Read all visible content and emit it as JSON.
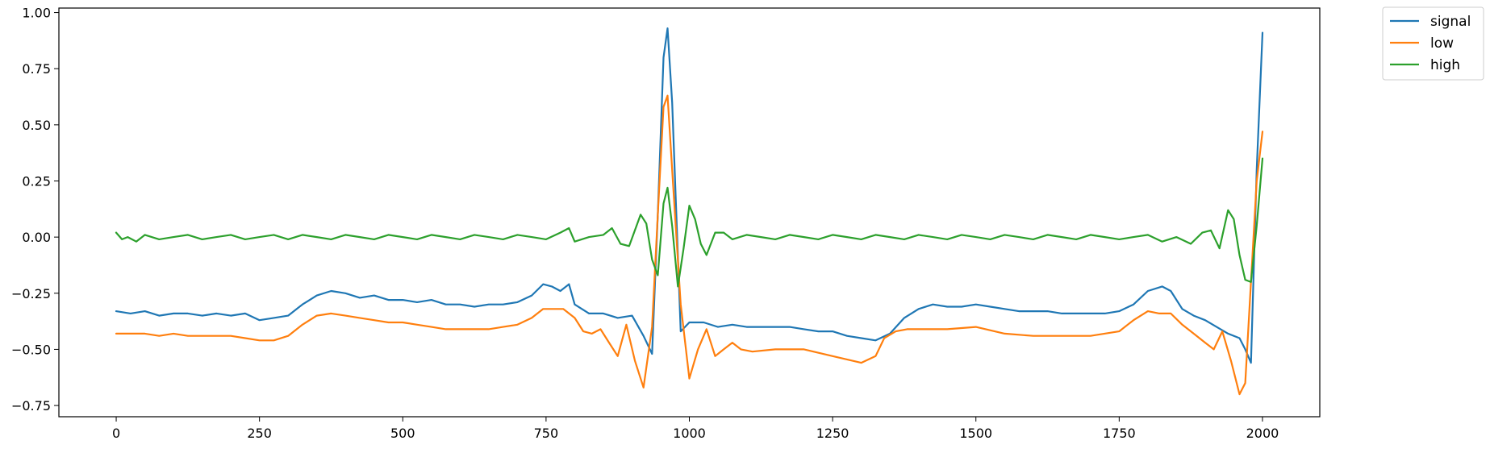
{
  "chart_data": {
    "type": "line",
    "title": "",
    "xlabel": "",
    "ylabel": "",
    "xlim": [
      -100,
      2100
    ],
    "ylim": [
      -0.8,
      1.02
    ],
    "xticks": [
      0,
      250,
      500,
      750,
      1000,
      1250,
      1500,
      1750,
      2000
    ],
    "xtick_labels": [
      "0",
      "250",
      "500",
      "750",
      "1000",
      "1250",
      "1500",
      "1750",
      "2000"
    ],
    "yticks": [
      -0.75,
      -0.5,
      -0.25,
      0.0,
      0.25,
      0.5,
      0.75,
      1.0
    ],
    "ytick_labels": [
      "−0.75",
      "−0.50",
      "−0.25",
      "0.00",
      "0.25",
      "0.50",
      "0.75",
      "1.00"
    ],
    "grid": false,
    "legend_position": "outside-top-right",
    "series": [
      {
        "name": "signal",
        "color": "#1f77b4",
        "x": [
          0,
          25,
          50,
          75,
          100,
          125,
          150,
          175,
          200,
          225,
          250,
          275,
          300,
          325,
          350,
          375,
          400,
          425,
          450,
          475,
          500,
          525,
          550,
          575,
          600,
          625,
          650,
          675,
          700,
          725,
          745,
          760,
          775,
          790,
          800,
          825,
          850,
          875,
          900,
          920,
          935,
          945,
          955,
          962,
          970,
          985,
          1000,
          1025,
          1050,
          1075,
          1100,
          1125,
          1150,
          1175,
          1200,
          1225,
          1250,
          1275,
          1300,
          1325,
          1350,
          1375,
          1400,
          1425,
          1450,
          1475,
          1500,
          1525,
          1550,
          1575,
          1600,
          1625,
          1650,
          1675,
          1700,
          1725,
          1750,
          1775,
          1800,
          1825,
          1840,
          1860,
          1880,
          1900,
          1920,
          1940,
          1960,
          1970,
          1980,
          1990,
          2000
        ],
        "y": [
          -0.33,
          -0.34,
          -0.33,
          -0.35,
          -0.34,
          -0.34,
          -0.35,
          -0.34,
          -0.35,
          -0.34,
          -0.37,
          -0.36,
          -0.35,
          -0.3,
          -0.26,
          -0.24,
          -0.25,
          -0.27,
          -0.26,
          -0.28,
          -0.28,
          -0.29,
          -0.28,
          -0.3,
          -0.3,
          -0.31,
          -0.3,
          -0.3,
          -0.29,
          -0.26,
          -0.21,
          -0.22,
          -0.24,
          -0.21,
          -0.3,
          -0.34,
          -0.34,
          -0.36,
          -0.35,
          -0.44,
          -0.52,
          0.1,
          0.8,
          0.93,
          0.6,
          -0.42,
          -0.38,
          -0.38,
          -0.4,
          -0.39,
          -0.4,
          -0.4,
          -0.4,
          -0.4,
          -0.41,
          -0.42,
          -0.42,
          -0.44,
          -0.45,
          -0.46,
          -0.43,
          -0.36,
          -0.32,
          -0.3,
          -0.31,
          -0.31,
          -0.3,
          -0.31,
          -0.32,
          -0.33,
          -0.33,
          -0.33,
          -0.34,
          -0.34,
          -0.34,
          -0.34,
          -0.33,
          -0.3,
          -0.24,
          -0.22,
          -0.24,
          -0.32,
          -0.35,
          -0.37,
          -0.4,
          -0.43,
          -0.45,
          -0.5,
          -0.56,
          0.3,
          0.91
        ]
      },
      {
        "name": "low",
        "color": "#ff7f0e",
        "x": [
          0,
          25,
          50,
          75,
          100,
          125,
          150,
          175,
          200,
          225,
          250,
          275,
          300,
          325,
          350,
          375,
          400,
          425,
          450,
          475,
          500,
          525,
          550,
          575,
          600,
          625,
          650,
          675,
          700,
          725,
          745,
          760,
          780,
          800,
          815,
          830,
          845,
          860,
          875,
          890,
          905,
          920,
          935,
          945,
          955,
          962,
          970,
          985,
          1000,
          1015,
          1030,
          1045,
          1060,
          1075,
          1090,
          1110,
          1150,
          1200,
          1250,
          1300,
          1325,
          1340,
          1360,
          1380,
          1400,
          1450,
          1500,
          1550,
          1600,
          1650,
          1700,
          1750,
          1775,
          1800,
          1820,
          1840,
          1860,
          1880,
          1900,
          1915,
          1930,
          1945,
          1960,
          1970,
          1980,
          1990,
          2000
        ],
        "y": [
          -0.43,
          -0.43,
          -0.43,
          -0.44,
          -0.43,
          -0.44,
          -0.44,
          -0.44,
          -0.44,
          -0.45,
          -0.46,
          -0.46,
          -0.44,
          -0.39,
          -0.35,
          -0.34,
          -0.35,
          -0.36,
          -0.37,
          -0.38,
          -0.38,
          -0.39,
          -0.4,
          -0.41,
          -0.41,
          -0.41,
          -0.41,
          -0.4,
          -0.39,
          -0.36,
          -0.32,
          -0.32,
          -0.32,
          -0.36,
          -0.42,
          -0.43,
          -0.41,
          -0.47,
          -0.53,
          -0.39,
          -0.55,
          -0.67,
          -0.4,
          0.1,
          0.58,
          0.63,
          0.3,
          -0.3,
          -0.63,
          -0.5,
          -0.41,
          -0.53,
          -0.5,
          -0.47,
          -0.5,
          -0.51,
          -0.5,
          -0.5,
          -0.53,
          -0.56,
          -0.53,
          -0.45,
          -0.42,
          -0.41,
          -0.41,
          -0.41,
          -0.4,
          -0.43,
          -0.44,
          -0.44,
          -0.44,
          -0.42,
          -0.37,
          -0.33,
          -0.34,
          -0.34,
          -0.39,
          -0.43,
          -0.47,
          -0.5,
          -0.42,
          -0.55,
          -0.7,
          -0.65,
          -0.2,
          0.25,
          0.47
        ]
      },
      {
        "name": "high",
        "color": "#2ca02c",
        "x": [
          0,
          10,
          20,
          35,
          50,
          75,
          100,
          125,
          150,
          175,
          200,
          225,
          250,
          275,
          300,
          325,
          350,
          375,
          400,
          425,
          450,
          475,
          500,
          525,
          550,
          575,
          600,
          625,
          650,
          675,
          700,
          725,
          750,
          775,
          790,
          800,
          825,
          850,
          865,
          880,
          895,
          905,
          915,
          925,
          935,
          945,
          955,
          962,
          970,
          980,
          990,
          1000,
          1010,
          1020,
          1030,
          1045,
          1060,
          1075,
          1100,
          1125,
          1150,
          1175,
          1200,
          1225,
          1250,
          1275,
          1300,
          1325,
          1350,
          1375,
          1400,
          1425,
          1450,
          1475,
          1500,
          1525,
          1550,
          1575,
          1600,
          1625,
          1650,
          1675,
          1700,
          1725,
          1750,
          1775,
          1800,
          1825,
          1850,
          1875,
          1895,
          1910,
          1925,
          1940,
          1950,
          1960,
          1970,
          1980,
          1990,
          2000
        ],
        "y": [
          0.02,
          -0.01,
          0.0,
          -0.02,
          0.01,
          -0.01,
          0.0,
          0.01,
          -0.01,
          0.0,
          0.01,
          -0.01,
          0.0,
          0.01,
          -0.01,
          0.01,
          0.0,
          -0.01,
          0.01,
          0.0,
          -0.01,
          0.01,
          0.0,
          -0.01,
          0.01,
          0.0,
          -0.01,
          0.01,
          0.0,
          -0.01,
          0.01,
          0.0,
          -0.01,
          0.02,
          0.04,
          -0.02,
          0.0,
          0.01,
          0.04,
          -0.03,
          -0.04,
          0.03,
          0.1,
          0.06,
          -0.1,
          -0.17,
          0.15,
          0.22,
          0.05,
          -0.22,
          -0.05,
          0.14,
          0.08,
          -0.03,
          -0.08,
          0.02,
          0.02,
          -0.01,
          0.01,
          0.0,
          -0.01,
          0.01,
          0.0,
          -0.01,
          0.01,
          0.0,
          -0.01,
          0.01,
          0.0,
          -0.01,
          0.01,
          0.0,
          -0.01,
          0.01,
          0.0,
          -0.01,
          0.01,
          0.0,
          -0.01,
          0.01,
          0.0,
          -0.01,
          0.01,
          0.0,
          -0.01,
          0.0,
          0.01,
          -0.02,
          0.0,
          -0.03,
          0.02,
          0.03,
          -0.05,
          0.12,
          0.08,
          -0.08,
          -0.19,
          -0.2,
          0.05,
          0.35
        ]
      }
    ]
  }
}
